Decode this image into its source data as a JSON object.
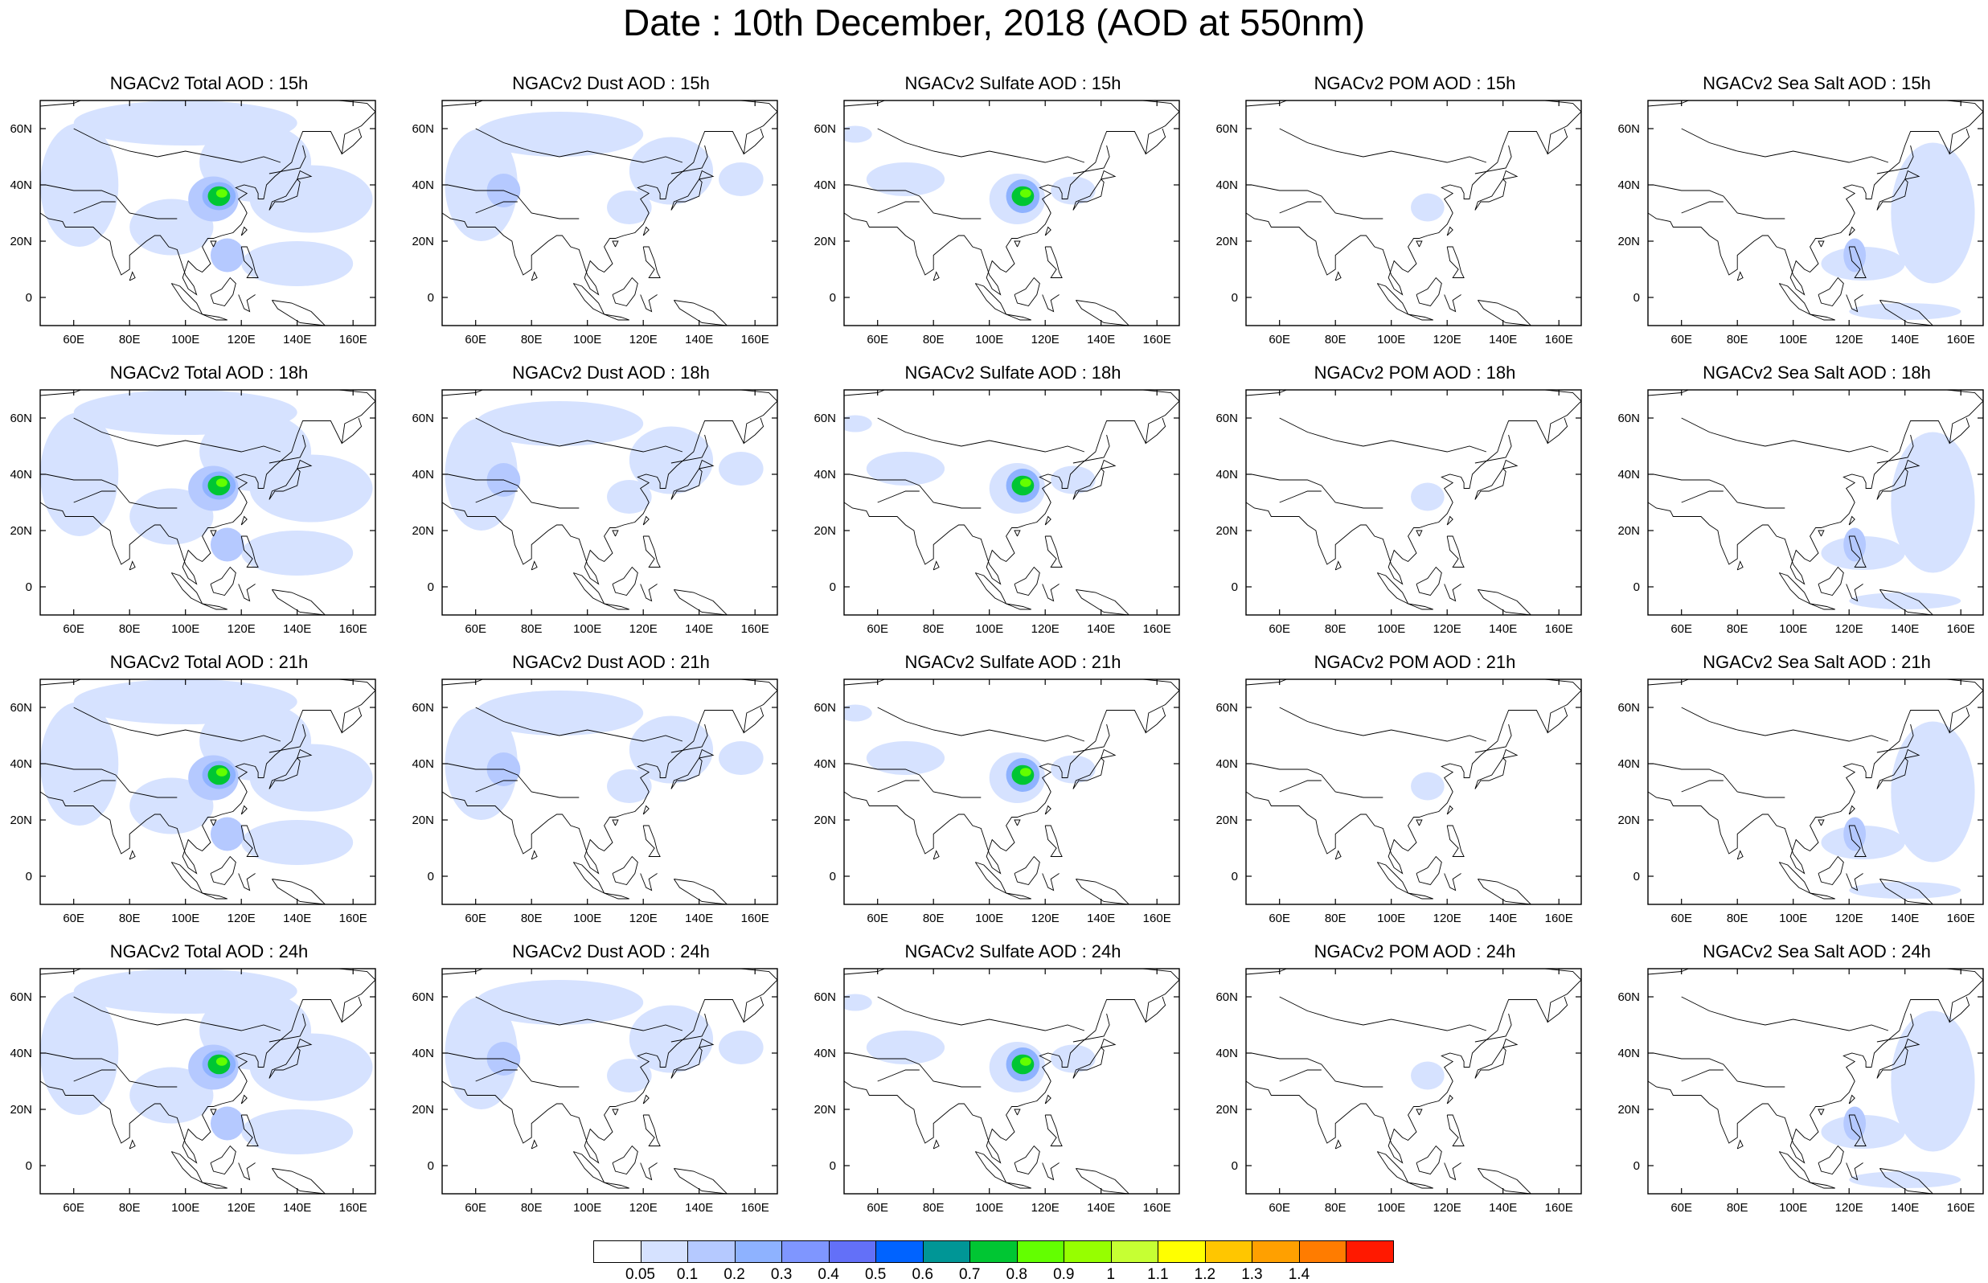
{
  "title": "Date : 10th December, 2018 (AOD at 550nm)",
  "map": {
    "lon_range": [
      48,
      168
    ],
    "lat_range": [
      -10,
      70
    ],
    "x_ticks": [
      "60E",
      "80E",
      "100E",
      "120E",
      "140E",
      "160E"
    ],
    "x_tick_values": [
      60,
      80,
      100,
      120,
      140,
      160
    ],
    "y_ticks": [
      "0",
      "20N",
      "40N",
      "60N"
    ],
    "y_tick_values": [
      0,
      20,
      40,
      60
    ]
  },
  "hours": [
    "15h",
    "18h",
    "21h",
    "24h"
  ],
  "columns": [
    {
      "key": "total",
      "titles": [
        "NGACv2 Total AOD : 15h",
        "NGACv2 Total AOD : 18h",
        "NGACv2 Total AOD : 21h",
        "NGACv2 Total AOD : 24h"
      ]
    },
    {
      "key": "dust",
      "titles": [
        "NGACv2 Dust AOD : 15h",
        "NGACv2 Dust AOD : 18h",
        "NGACv2 Dust AOD : 21h",
        "NGACv2 Dust AOD : 24h"
      ]
    },
    {
      "key": "sulfate",
      "titles": [
        "NGACv2 Sulfate AOD : 15h",
        "NGACv2 Sulfate AOD : 18h",
        "NGACv2 Sulfate AOD : 21h",
        "NGACv2 Sulfate AOD : 24h"
      ]
    },
    {
      "key": "pom",
      "titles": [
        "NGACv2 POM AOD : 15h",
        "NGACv2 POM AOD : 18h",
        "NGACv2 POM AOD : 21h",
        "NGACv2 POM AOD : 24h"
      ]
    },
    {
      "key": "seasalt",
      "titles": [
        "NGACv2 Sea Salt AOD : 15h",
        "NGACv2 Sea Salt AOD : 18h",
        "NGACv2 Sea Salt AOD : 21h",
        "NGACv2 Sea Salt  AOD : 24h"
      ]
    }
  ],
  "colorbar": {
    "labels": [
      "0.05",
      "0.1",
      "0.2",
      "0.3",
      "0.4",
      "0.5",
      "0.6",
      "0.7",
      "0.8",
      "0.9",
      "1",
      "1.1",
      "1.2",
      "1.3",
      "1.4"
    ],
    "colors": [
      "#ffffff",
      "#d6e2ff",
      "#b5c9ff",
      "#8eb2ff",
      "#7f96ff",
      "#6370f8",
      "#0063ff",
      "#009696",
      "#00c633",
      "#63ff00",
      "#96ff00",
      "#c6ff33",
      "#ffff00",
      "#ffc600",
      "#ffa000",
      "#ff7c00",
      "#ff1900"
    ]
  },
  "legend_colors": {
    "light": "#d6e2ff",
    "blue": "#b5c9ff",
    "mid": "#8eb2ff",
    "green": "#00c633",
    "lime": "#63ff00",
    "yellow": "#c6ff33",
    "coast": "#000000"
  }
}
